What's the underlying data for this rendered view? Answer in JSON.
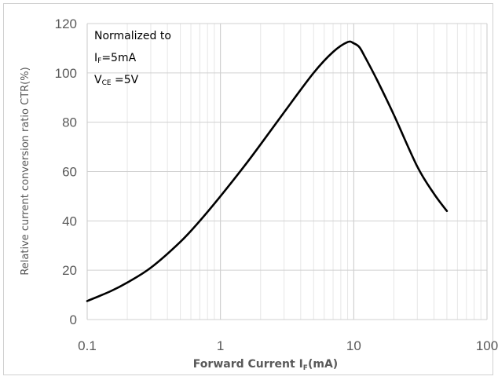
{
  "chart_data": {
    "type": "line",
    "xlabel_main": "Forward Current I",
    "xlabel_sub": "F",
    "xlabel_tail": "(mA)",
    "ylabel": "Relative current conversion ratio CTR(%)",
    "xscale": "log",
    "xlim": [
      0.1,
      100
    ],
    "ylim": [
      0,
      120
    ],
    "x_ticks": [
      "0.1",
      "1",
      "10",
      "100"
    ],
    "y_ticks": [
      "0",
      "20",
      "40",
      "60",
      "80",
      "100",
      "120"
    ],
    "grid": true,
    "annotation": {
      "line1": "Normalized to",
      "line2_main": "I",
      "line2_sub": "F",
      "line2_tail": "=5mA",
      "line3_main": "V",
      "line3_sub": "CE",
      "line3_tail": " =5V"
    },
    "series": [
      {
        "color": "#000000",
        "x": [
          0.1,
          0.15,
          0.2,
          0.3,
          0.5,
          0.7,
          1,
          1.5,
          2,
          3,
          5,
          7,
          9,
          10,
          11,
          12,
          15,
          20,
          30,
          40,
          50
        ],
        "y": [
          7.5,
          11.5,
          15,
          21,
          31.5,
          40,
          50,
          62,
          71,
          84,
          100,
          108.5,
          112.5,
          112,
          110.5,
          107,
          97,
          83,
          62,
          51,
          44
        ]
      }
    ]
  }
}
